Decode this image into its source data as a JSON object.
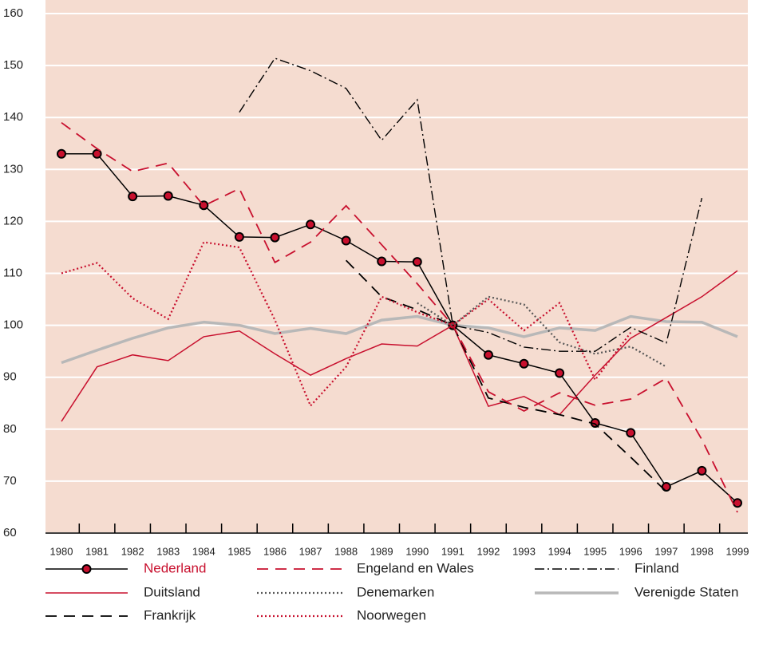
{
  "chart_data": {
    "type": "line",
    "categories": [
      "1980",
      "1981",
      "1982",
      "1983",
      "1984",
      "1985",
      "1986",
      "1987",
      "1988",
      "1989",
      "1990",
      "1991",
      "1992",
      "1993",
      "1994",
      "1995",
      "1996",
      "1997",
      "1998",
      "1999"
    ],
    "ylim": [
      60,
      160
    ],
    "yticks": [
      60,
      70,
      80,
      90,
      100,
      110,
      120,
      130,
      140,
      150,
      160
    ],
    "grid": true,
    "background": "#f5dcd0",
    "series": [
      {
        "name": "Nederland",
        "color": "#000000",
        "dash": "solid",
        "marker": true,
        "legend_text_color": "#c8102e",
        "values": [
          133,
          133,
          124.8,
          124.9,
          123.1,
          117,
          116.9,
          119.4,
          116.3,
          112.3,
          112.2,
          100,
          94.3,
          92.6,
          90.8,
          81.2,
          79.3,
          68.9,
          72,
          65.8
        ]
      },
      {
        "name": "Duitsland",
        "color": "#c8102e",
        "dash": "solid",
        "values": [
          81.5,
          92,
          94.3,
          93.2,
          97.8,
          98.9,
          94.5,
          90.4,
          93.6,
          96.4,
          96,
          100,
          84.4,
          86.3,
          82.8,
          90.4,
          97.5,
          101.5,
          105.5,
          110.5
        ]
      },
      {
        "name": "Frankrijk",
        "color": "#000000",
        "dash": "dashed",
        "values": [
          null,
          null,
          null,
          null,
          null,
          null,
          null,
          null,
          112.5,
          105.5,
          103,
          100,
          86,
          84.2,
          82.8,
          81,
          74.6,
          68,
          null,
          null
        ]
      },
      {
        "name": "Engeland en Wales",
        "color": "#c8102e",
        "dash": "dashed",
        "values": [
          139,
          134,
          129.6,
          131.2,
          123,
          126.3,
          112.1,
          116,
          123,
          115.5,
          108,
          100,
          87.2,
          83.5,
          87,
          84.6,
          85.8,
          89.8,
          78,
          64
        ]
      },
      {
        "name": "Denemarken",
        "color": "#555555",
        "dash": "dotted",
        "values": [
          null,
          null,
          null,
          null,
          null,
          null,
          null,
          null,
          null,
          null,
          104.3,
          100,
          105.5,
          104,
          96.7,
          94.5,
          95.9,
          92,
          null,
          null
        ]
      },
      {
        "name": "Noorwegen",
        "color": "#c8102e",
        "dash": "dotted",
        "values": [
          110,
          112,
          105.2,
          101.2,
          116,
          115,
          101,
          84.5,
          92,
          105.5,
          102.5,
          100,
          105,
          99,
          104.3,
          89.5,
          98.6,
          null,
          null,
          null
        ]
      },
      {
        "name": "Finland",
        "color": "#000000",
        "dash": "dashdot",
        "values": [
          null,
          null,
          null,
          null,
          null,
          141,
          151.4,
          149,
          145.6,
          135.6,
          143.4,
          100,
          98.6,
          95.8,
          95,
          95,
          99.6,
          96.6,
          124.5,
          null
        ]
      },
      {
        "name": "Verenigde Staten",
        "color": "#b8b8b8",
        "dash": "thick",
        "values": [
          92.8,
          95.2,
          97.5,
          99.5,
          100.6,
          100,
          98.4,
          99.4,
          98.4,
          101,
          101.7,
          100,
          99.5,
          97.8,
          99.5,
          99,
          101.7,
          100.7,
          100.6,
          97.8
        ]
      }
    ]
  }
}
